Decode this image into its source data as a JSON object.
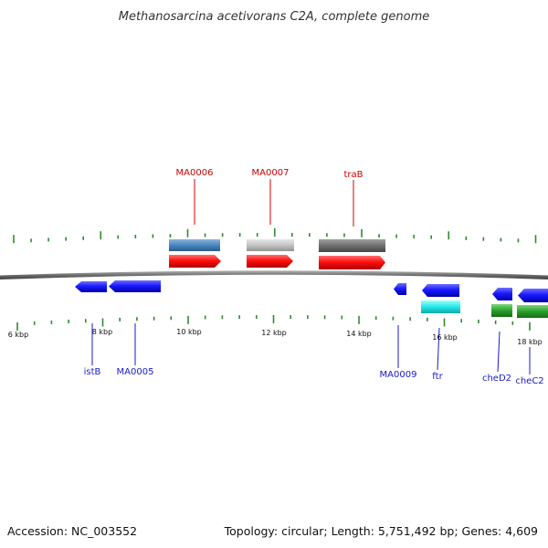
{
  "title": "Methanosarcina acetivorans C2A, complete genome",
  "footer": {
    "accession": "Accession: NC_003552",
    "summary": "Topology: circular; Length: 5,751,492 bp; Genes: 4,609"
  },
  "colors": {
    "backbone": "#7a7a7a",
    "tick": "#2e8b2e",
    "forward_cds": "#ff0000",
    "forward_label": "#cc0000",
    "reverse_cds": "#1a1aff",
    "reverse_label": "#1a1acc",
    "steelblue_feature": "#4a86bf",
    "lightgray_feature": "#c4c4c4",
    "darkgray_feature": "#6e6e6e",
    "cyan_feature": "#22e8e8",
    "green_feature": "#2aa02a"
  },
  "axis": {
    "unit": "kbp",
    "tick_labels": [
      "6 kbp",
      "8 kbp",
      "10 kbp",
      "12 kbp",
      "14 kbp",
      "16 kbp",
      "18 kbp"
    ]
  },
  "genes_forward": [
    {
      "label": "MA0006"
    },
    {
      "label": "MA0007"
    },
    {
      "label": "traB"
    }
  ],
  "genes_reverse": [
    {
      "label": "istB"
    },
    {
      "label": "MA0005"
    },
    {
      "label": "MA0009"
    },
    {
      "label": "ftr"
    },
    {
      "label": "cheD2"
    },
    {
      "label": "cheC2"
    }
  ]
}
